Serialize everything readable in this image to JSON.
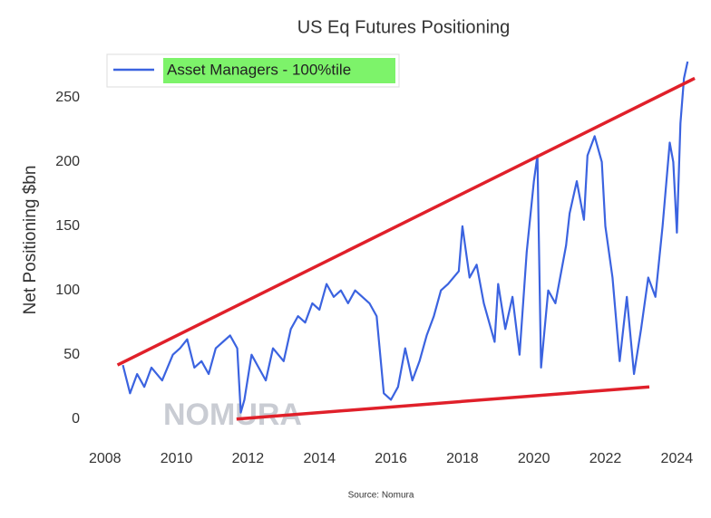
{
  "chart_data": {
    "type": "line",
    "title": "US Eq Futures Positioning",
    "y_label": "Net Positioning $bn",
    "source": "Source: Nomura",
    "watermark": "NOMURA",
    "legend": "upper left",
    "grid": false,
    "xlim": [
      2007.6,
      2024.6
    ],
    "xticks": [
      2008,
      2010,
      2012,
      2014,
      2016,
      2018,
      2020,
      2022,
      2024
    ],
    "ylim": [
      -15,
      290
    ],
    "yticks": [
      0,
      50,
      100,
      150,
      200,
      250
    ],
    "x": [
      2008.5,
      2008.7,
      2008.9,
      2009.1,
      2009.3,
      2009.6,
      2009.9,
      2010.1,
      2010.3,
      2010.5,
      2010.7,
      2010.9,
      2011.1,
      2011.3,
      2011.5,
      2011.7,
      2011.8,
      2011.9,
      2012.1,
      2012.3,
      2012.5,
      2012.7,
      2013.0,
      2013.2,
      2013.4,
      2013.6,
      2013.8,
      2014.0,
      2014.2,
      2014.4,
      2014.6,
      2014.8,
      2015.0,
      2015.2,
      2015.4,
      2015.6,
      2015.8,
      2016.0,
      2016.2,
      2016.4,
      2016.6,
      2016.8,
      2017.0,
      2017.2,
      2017.4,
      2017.6,
      2017.9,
      2018.0,
      2018.2,
      2018.4,
      2018.6,
      2018.9,
      2019.0,
      2019.2,
      2019.4,
      2019.6,
      2019.8,
      2020.0,
      2020.1,
      2020.2,
      2020.4,
      2020.6,
      2020.9,
      2021.0,
      2021.2,
      2021.4,
      2021.5,
      2021.7,
      2021.9,
      2022.0,
      2022.2,
      2022.4,
      2022.6,
      2022.8,
      2023.0,
      2023.2,
      2023.4,
      2023.6,
      2023.8,
      2023.9,
      2024.0,
      2024.1,
      2024.2,
      2024.3
    ],
    "series": [
      {
        "name": "Asset Managers - 100%tile",
        "color": "#3b63e0",
        "values": [
          42,
          20,
          35,
          25,
          40,
          30,
          50,
          55,
          62,
          40,
          45,
          35,
          55,
          60,
          65,
          55,
          5,
          15,
          50,
          40,
          30,
          55,
          45,
          70,
          80,
          75,
          90,
          85,
          105,
          95,
          100,
          90,
          100,
          95,
          90,
          80,
          20,
          15,
          25,
          55,
          30,
          45,
          65,
          80,
          100,
          105,
          115,
          150,
          110,
          120,
          90,
          60,
          105,
          70,
          95,
          50,
          130,
          185,
          205,
          40,
          100,
          90,
          135,
          160,
          185,
          155,
          205,
          220,
          200,
          150,
          110,
          45,
          95,
          35,
          70,
          110,
          95,
          150,
          215,
          200,
          145,
          230,
          265,
          278
        ]
      }
    ],
    "trend_lines": [
      {
        "color": "#e0202a",
        "x": [
          2008.35,
          2024.5
        ],
        "y": [
          42,
          265
        ]
      },
      {
        "color": "#e0202a",
        "x": [
          2011.68,
          2023.23
        ],
        "y": [
          0,
          25
        ]
      }
    ]
  }
}
